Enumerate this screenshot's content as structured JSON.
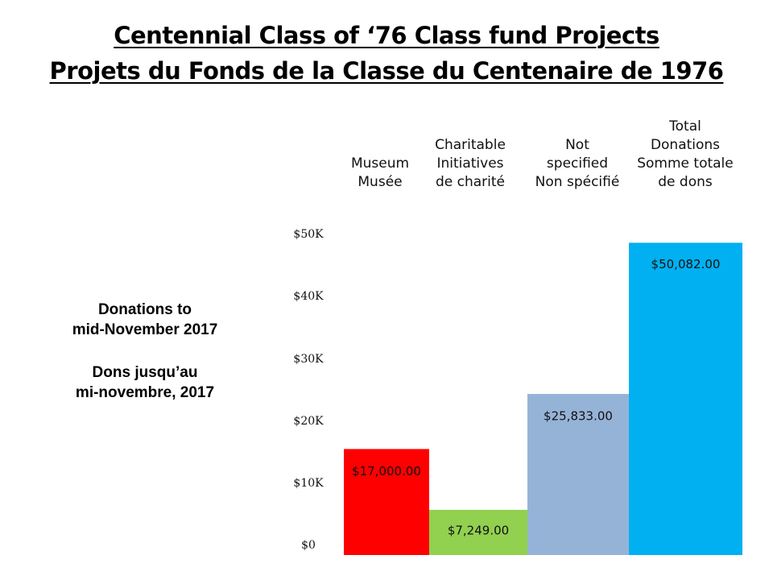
{
  "title": {
    "line1": "Centennial Class of ‘76 Class fund Projects",
    "line2": "Projets du Fonds de la Classe du Centenaire de 1976"
  },
  "side_note": {
    "en_line1": "Donations to",
    "en_line2": "mid-November 2017",
    "fr_line1": "Dons jusqu’au",
    "fr_line2": "mi-novembre, 2017"
  },
  "chart_data": {
    "type": "bar",
    "title": "Centennial Class of ‘76 Class fund Projects / Projets du Fonds de la Classe du Centenaire de 1976",
    "xlabel": "",
    "ylabel": "",
    "ylim": [
      0,
      50000
    ],
    "grid": false,
    "legend": "none",
    "y_ticks": [
      {
        "value": 0,
        "label": "$0"
      },
      {
        "value": 10000,
        "label": "$10K"
      },
      {
        "value": 20000,
        "label": "$20K"
      },
      {
        "value": 30000,
        "label": "$30K"
      },
      {
        "value": 40000,
        "label": "$40K"
      },
      {
        "value": 50000,
        "label": "$50K"
      }
    ],
    "categories": [
      {
        "lines": [
          "Museum",
          "Musée"
        ],
        "value": 17000,
        "value_label": "$17,000.00",
        "color": "#ff0000"
      },
      {
        "lines": [
          "Charitable",
          "Initiatives",
          "de charité"
        ],
        "value": 7249,
        "value_label": "$7,249.00",
        "color": "#92d050"
      },
      {
        "lines": [
          "Not",
          "specified",
          "Non spécifié"
        ],
        "value": 25833,
        "value_label": "$25,833.00",
        "color": "#95b3d7"
      },
      {
        "lines": [
          "Total",
          "Donations",
          "Somme totale",
          "de dons"
        ],
        "value": 50082,
        "value_label": "$50,082.00",
        "color": "#00b0f0"
      }
    ]
  }
}
